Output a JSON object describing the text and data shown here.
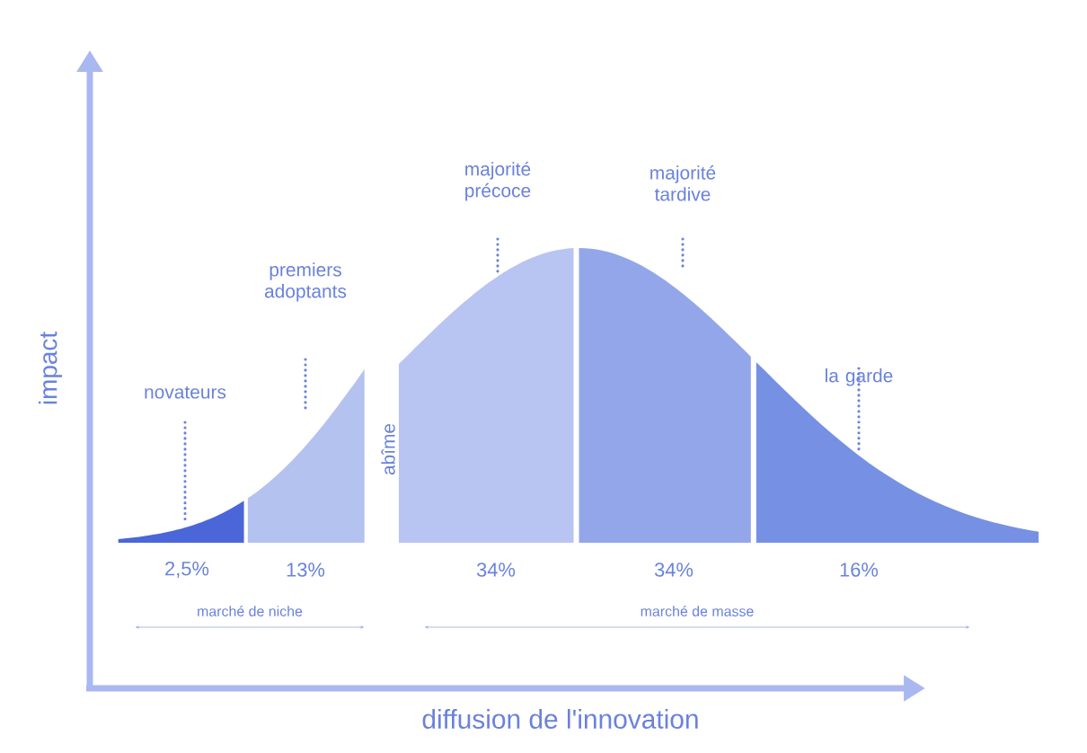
{
  "chart_data": {
    "type": "other",
    "categories": [
      "novateurs",
      "premiers adoptants",
      "majorité précoce",
      "majorité tardive",
      "la garde"
    ],
    "values": [
      2.5,
      13,
      34,
      34,
      16
    ],
    "value_labels": [
      "2,5%",
      "13%",
      "34%",
      "34%",
      "16%"
    ],
    "colors": [
      "#4a66d8",
      "#b4c2f0",
      "#b8c5f2",
      "#93a6ea",
      "#7690e4"
    ],
    "xlabel": "diffusion de l'innovation",
    "ylabel": "impact",
    "annotations": [
      "abîme",
      "marché de niche",
      "marché de masse"
    ]
  }
}
